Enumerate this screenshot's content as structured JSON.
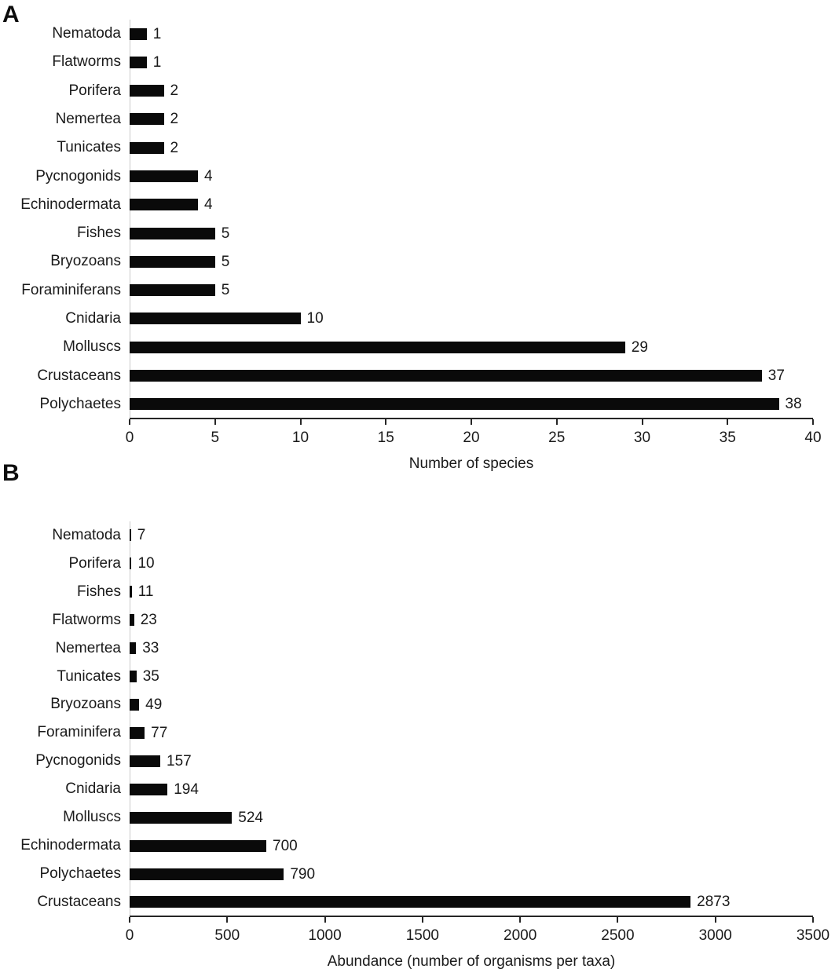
{
  "figure": {
    "background": "#ffffff",
    "bar_color": "#0a0a0a",
    "axis_color": "#262626",
    "gridline_color": "#c9c9c9",
    "text_color": "#1a1a1a"
  },
  "chart_data": [
    {
      "type": "bar",
      "orientation": "horizontal",
      "panel_label": "A",
      "categories": [
        "Nematoda",
        "Flatworms",
        "Porifera",
        "Nemertea",
        "Tunicates",
        "Pycnogonids",
        "Echinodermata",
        "Fishes",
        "Bryozoans",
        "Foraminiferans",
        "Cnidaria",
        "Molluscs",
        "Crustaceans",
        "Polychaetes"
      ],
      "values": [
        1,
        1,
        2,
        2,
        2,
        4,
        4,
        5,
        5,
        5,
        10,
        29,
        37,
        38
      ],
      "title": "",
      "xlabel": "Number of species",
      "ylabel": "",
      "xlim": [
        0,
        40
      ],
      "xticks": [
        0,
        5,
        10,
        15,
        20,
        25,
        30,
        35,
        40
      ],
      "grid": false,
      "legend": false,
      "value_labels_shown": true
    },
    {
      "type": "bar",
      "orientation": "horizontal",
      "panel_label": "B",
      "categories": [
        "Nematoda",
        "Porifera",
        "Fishes",
        "Flatworms",
        "Nemertea",
        "Tunicates",
        "Bryozoans",
        "Foraminifera",
        "Pycnogonids",
        "Cnidaria",
        "Molluscs",
        "Echinodermata",
        "Polychaetes",
        "Crustaceans"
      ],
      "values": [
        7,
        10,
        11,
        23,
        33,
        35,
        49,
        77,
        157,
        194,
        524,
        700,
        790,
        2873
      ],
      "title": "",
      "xlabel": "Abundance (number of organisms per taxa)",
      "ylabel": "",
      "xlim": [
        0,
        3500
      ],
      "xticks": [
        0,
        500,
        1000,
        1500,
        2000,
        2500,
        3000,
        3500
      ],
      "grid": false,
      "legend": false,
      "value_labels_shown": true
    }
  ]
}
